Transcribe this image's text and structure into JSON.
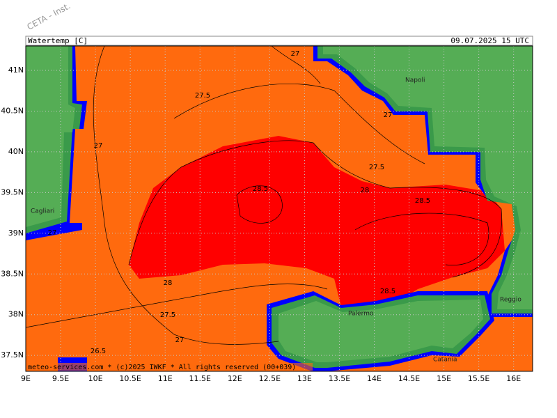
{
  "watermark": "CETA - Inst.",
  "header": {
    "title": "Watertemp [C]",
    "time": "09.07.2025 15 UTC"
  },
  "map": {
    "lat_labels": [
      "41N",
      "40.5N",
      "40N",
      "39.5N",
      "39N",
      "38.5N",
      "38N",
      "37.5N"
    ],
    "lon_labels": [
      "9E",
      "9.5E",
      "10E",
      "10.5E",
      "11E",
      "11.5E",
      "12E",
      "12.5E",
      "13E",
      "13.5E",
      "14E",
      "14.5E",
      "15E",
      "15.5E",
      "16E"
    ],
    "contour_labels": [
      27,
      27.5,
      27,
      27,
      27.5,
      28.5,
      28,
      28.5,
      27,
      28,
      28.5,
      27.5,
      27,
      26.5
    ],
    "places": [
      "Napoli",
      "Cagliari",
      "Palermo",
      "Reggio",
      "Catania"
    ]
  },
  "footer": "meteo-services.com * (c)2025 IWKF * All rights reserved (00+039)"
}
